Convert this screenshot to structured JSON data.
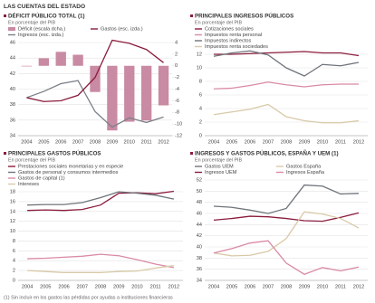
{
  "header": "LAS CUENTAS DEL ESTADO",
  "footnote": "(1) Sin incluir en los gastos las pérdidas por ayudas a instituciones financieras",
  "chart_data": [
    {
      "type": "combo",
      "title": "DÉFICIT PÚBLICO TOTAL (1)",
      "subtitle": "En porcentaje del PIB",
      "categories": [
        "2004",
        "2005",
        "2006",
        "2007",
        "2008",
        "2009",
        "2010",
        "2011",
        "2012"
      ],
      "series": [
        {
          "name": "Déficit (escala dcha.)",
          "color": "#c98aa3",
          "mark": "bar",
          "axis": "y2",
          "values": [
            -0.1,
            1.3,
            2.4,
            1.9,
            -4.5,
            -11.1,
            -9.6,
            -9.4,
            -6.8
          ]
        },
        {
          "name": "Ingresos (esc. izda.)",
          "color": "#7a7f86",
          "mark": "line",
          "values": [
            38.9,
            39.7,
            40.7,
            41.1,
            37.1,
            35.1,
            36.3,
            35.7,
            36.4
          ]
        },
        {
          "name": "Gastos (esc. izda.)",
          "color": "#8b1c3c",
          "mark": "line",
          "values": [
            38.9,
            38.4,
            38.5,
            39.2,
            41.5,
            46.3,
            45.9,
            45.1,
            43.4
          ]
        }
      ],
      "ylim": [
        34,
        46
      ],
      "yticks": [
        34,
        36,
        38,
        40,
        42,
        44,
        46
      ],
      "y2lim": [
        -12,
        4
      ],
      "y2ticks": [
        -12,
        -10,
        -8,
        -6,
        -4,
        -2,
        0,
        2,
        4
      ],
      "grid": true
    },
    {
      "type": "line",
      "title": "PRINCIPALES INGRESOS PÚBLICOS",
      "subtitle": "En porcentaje del PIB",
      "categories": [
        "2004",
        "2005",
        "2006",
        "2007",
        "2008",
        "2009",
        "2010",
        "2011",
        "2012"
      ],
      "series": [
        {
          "name": "Cotizaciones sociales",
          "color": "#8b1c3c",
          "values": [
            12.0,
            12.0,
            12.1,
            12.2,
            12.3,
            12.4,
            12.2,
            12.2,
            11.8
          ]
        },
        {
          "name": "Impuestos renta personal",
          "color": "#d98aa5",
          "values": [
            6.9,
            7.0,
            7.4,
            7.9,
            7.5,
            7.2,
            7.5,
            7.6,
            7.6
          ]
        },
        {
          "name": "Impuestos indirectos",
          "color": "#6f747b",
          "values": [
            11.7,
            12.2,
            12.5,
            11.9,
            10.0,
            8.8,
            10.5,
            10.3,
            10.8
          ]
        },
        {
          "name": "Impuestos renta sociedades",
          "color": "#d8c9a8",
          "values": [
            3.1,
            3.5,
            3.9,
            4.6,
            2.8,
            2.2,
            1.9,
            1.9,
            2.2
          ]
        }
      ],
      "ylim": [
        0,
        12
      ],
      "yticks": [
        0,
        2,
        4,
        6,
        8,
        10,
        12
      ],
      "grid": true
    },
    {
      "type": "line",
      "title": "PRINCIPALES GASTOS PÚBLICOS",
      "subtitle": "En porcentaje del PIB",
      "categories": [
        "2004",
        "2005",
        "2006",
        "2007",
        "2008",
        "2009",
        "2010",
        "2011",
        "2012"
      ],
      "series": [
        {
          "name": "Prestaciones sociales monetarias y en especie",
          "color": "#8b1c3c",
          "values": [
            14.2,
            14.3,
            14.2,
            14.4,
            15.3,
            17.7,
            17.8,
            17.6,
            18.1
          ]
        },
        {
          "name": "Gastos de personal y consumos intermedios",
          "color": "#6f747b",
          "values": [
            15.3,
            15.4,
            15.4,
            15.8,
            16.8,
            18.0,
            17.7,
            17.3,
            16.5
          ]
        },
        {
          "name": "Gastos de capital (1)",
          "color": "#d98aa5",
          "values": [
            4.4,
            4.5,
            4.7,
            4.9,
            5.3,
            5.0,
            4.2,
            3.3,
            2.6
          ]
        },
        {
          "name": "Intereses",
          "color": "#d8c9a8",
          "values": [
            2.0,
            1.8,
            1.6,
            1.6,
            1.6,
            1.8,
            1.9,
            2.5,
            3.0
          ]
        }
      ],
      "ylim": [
        0,
        18
      ],
      "yticks": [
        0,
        2,
        4,
        6,
        8,
        10,
        12,
        14,
        16,
        18
      ],
      "grid": true
    },
    {
      "type": "line",
      "title": "INGRESOS Y GASTOS PÚBLICOS, ESPAÑA Y UEM (1)",
      "subtitle": "En porcentaje del PIB",
      "categories": [
        "2004",
        "2005",
        "2006",
        "2007",
        "2008",
        "2009",
        "2010",
        "2011",
        "2012"
      ],
      "series": [
        {
          "name": "Gastos UEM",
          "color": "#6f747b",
          "values": [
            47.3,
            47.1,
            46.6,
            46.0,
            46.9,
            51.1,
            50.9,
            49.5,
            49.6
          ]
        },
        {
          "name": "Ingresos UEM",
          "color": "#8b1c3c",
          "values": [
            44.8,
            45.1,
            45.5,
            45.4,
            45.1,
            44.7,
            44.6,
            45.3,
            46.1
          ]
        },
        {
          "name": "Gastos España",
          "color": "#d8c9a8",
          "values": [
            38.9,
            38.4,
            38.5,
            39.2,
            41.5,
            46.3,
            45.9,
            45.1,
            43.4
          ]
        },
        {
          "name": "Ingresos España",
          "color": "#d98aa5",
          "values": [
            38.9,
            39.7,
            40.7,
            41.1,
            37.1,
            35.1,
            36.3,
            35.7,
            36.4
          ]
        }
      ],
      "ylim": [
        34,
        52
      ],
      "yticks": [
        34,
        36,
        38,
        40,
        42,
        44,
        46,
        48,
        50,
        52
      ],
      "grid": true
    }
  ]
}
